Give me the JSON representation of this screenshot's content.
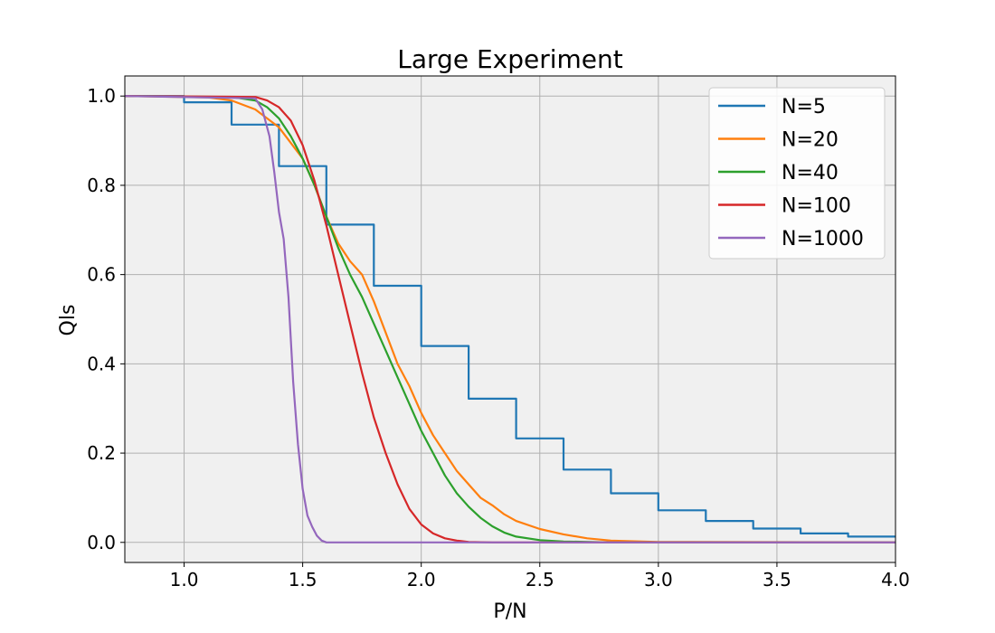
{
  "chart_data": {
    "type": "line",
    "title": "Large Experiment",
    "xlabel": "P/N",
    "ylabel": "Qls",
    "xlim": [
      0.75,
      4.0
    ],
    "ylim": [
      -0.045,
      1.045
    ],
    "grid": true,
    "background": "#f0f0f0",
    "legend_position": "top-right",
    "xticks": [
      1.0,
      1.5,
      2.0,
      2.5,
      3.0,
      3.5,
      4.0
    ],
    "xtick_labels": [
      "1.0",
      "1.5",
      "2.0",
      "2.5",
      "3.0",
      "3.5",
      "4.0"
    ],
    "yticks": [
      0.0,
      0.2,
      0.4,
      0.6,
      0.8,
      1.0
    ],
    "ytick_labels": [
      "0.0",
      "0.2",
      "0.4",
      "0.6",
      "0.8",
      "1.0"
    ],
    "series": [
      {
        "name": "N=5",
        "color": "#1f77b4",
        "points": [
          [
            0.75,
            1.0
          ],
          [
            1.0,
            1.0
          ],
          [
            1.0,
            0.986
          ],
          [
            1.2,
            0.986
          ],
          [
            1.2,
            0.936
          ],
          [
            1.4,
            0.936
          ],
          [
            1.4,
            0.843
          ],
          [
            1.6,
            0.843
          ],
          [
            1.6,
            0.712
          ],
          [
            1.8,
            0.712
          ],
          [
            1.8,
            0.575
          ],
          [
            2.0,
            0.575
          ],
          [
            2.0,
            0.44
          ],
          [
            2.2,
            0.44
          ],
          [
            2.2,
            0.322
          ],
          [
            2.4,
            0.322
          ],
          [
            2.4,
            0.233
          ],
          [
            2.6,
            0.233
          ],
          [
            2.6,
            0.163
          ],
          [
            2.8,
            0.163
          ],
          [
            2.8,
            0.11
          ],
          [
            3.0,
            0.11
          ],
          [
            3.0,
            0.072
          ],
          [
            3.2,
            0.072
          ],
          [
            3.2,
            0.048
          ],
          [
            3.4,
            0.048
          ],
          [
            3.4,
            0.031
          ],
          [
            3.6,
            0.031
          ],
          [
            3.6,
            0.02
          ],
          [
            3.8,
            0.02
          ],
          [
            3.8,
            0.013
          ],
          [
            4.0,
            0.013
          ]
        ]
      },
      {
        "name": "N=20",
        "color": "#ff7f0e",
        "points": [
          [
            0.75,
            1.0
          ],
          [
            1.1,
            0.997
          ],
          [
            1.2,
            0.99
          ],
          [
            1.3,
            0.97
          ],
          [
            1.4,
            0.93
          ],
          [
            1.5,
            0.86
          ],
          [
            1.55,
            0.8
          ],
          [
            1.6,
            0.73
          ],
          [
            1.65,
            0.67
          ],
          [
            1.7,
            0.63
          ],
          [
            1.75,
            0.6
          ],
          [
            1.8,
            0.54
          ],
          [
            1.85,
            0.47
          ],
          [
            1.9,
            0.4
          ],
          [
            1.95,
            0.35
          ],
          [
            2.0,
            0.29
          ],
          [
            2.05,
            0.24
          ],
          [
            2.1,
            0.2
          ],
          [
            2.15,
            0.16
          ],
          [
            2.2,
            0.13
          ],
          [
            2.25,
            0.1
          ],
          [
            2.3,
            0.083
          ],
          [
            2.35,
            0.063
          ],
          [
            2.4,
            0.048
          ],
          [
            2.5,
            0.03
          ],
          [
            2.6,
            0.018
          ],
          [
            2.7,
            0.009
          ],
          [
            2.8,
            0.004
          ],
          [
            3.0,
            0.001
          ],
          [
            4.0,
            0.0
          ]
        ]
      },
      {
        "name": "N=40",
        "color": "#2ca02c",
        "points": [
          [
            0.75,
            1.0
          ],
          [
            1.2,
            0.998
          ],
          [
            1.3,
            0.99
          ],
          [
            1.35,
            0.975
          ],
          [
            1.4,
            0.95
          ],
          [
            1.45,
            0.91
          ],
          [
            1.5,
            0.86
          ],
          [
            1.55,
            0.8
          ],
          [
            1.6,
            0.73
          ],
          [
            1.65,
            0.66
          ],
          [
            1.7,
            0.6
          ],
          [
            1.75,
            0.55
          ],
          [
            1.8,
            0.49
          ],
          [
            1.85,
            0.43
          ],
          [
            1.9,
            0.37
          ],
          [
            1.95,
            0.31
          ],
          [
            2.0,
            0.25
          ],
          [
            2.05,
            0.2
          ],
          [
            2.1,
            0.15
          ],
          [
            2.15,
            0.11
          ],
          [
            2.2,
            0.08
          ],
          [
            2.25,
            0.055
          ],
          [
            2.3,
            0.036
          ],
          [
            2.35,
            0.022
          ],
          [
            2.4,
            0.013
          ],
          [
            2.5,
            0.005
          ],
          [
            2.6,
            0.002
          ],
          [
            2.8,
            0.0
          ],
          [
            4.0,
            0.0
          ]
        ]
      },
      {
        "name": "N=100",
        "color": "#d62728",
        "points": [
          [
            0.75,
            1.0
          ],
          [
            1.3,
            0.998
          ],
          [
            1.35,
            0.99
          ],
          [
            1.4,
            0.975
          ],
          [
            1.45,
            0.945
          ],
          [
            1.5,
            0.89
          ],
          [
            1.55,
            0.81
          ],
          [
            1.6,
            0.71
          ],
          [
            1.65,
            0.6
          ],
          [
            1.7,
            0.49
          ],
          [
            1.75,
            0.38
          ],
          [
            1.8,
            0.28
          ],
          [
            1.85,
            0.2
          ],
          [
            1.9,
            0.13
          ],
          [
            1.95,
            0.075
          ],
          [
            2.0,
            0.04
          ],
          [
            2.05,
            0.02
          ],
          [
            2.1,
            0.009
          ],
          [
            2.15,
            0.004
          ],
          [
            2.2,
            0.001
          ],
          [
            2.3,
            0.0
          ],
          [
            4.0,
            0.0
          ]
        ]
      },
      {
        "name": "N=1000",
        "color": "#9467bd",
        "points": [
          [
            0.75,
            1.0
          ],
          [
            1.3,
            0.995
          ],
          [
            1.33,
            0.97
          ],
          [
            1.36,
            0.91
          ],
          [
            1.38,
            0.83
          ],
          [
            1.4,
            0.74
          ],
          [
            1.42,
            0.68
          ],
          [
            1.44,
            0.55
          ],
          [
            1.46,
            0.36
          ],
          [
            1.48,
            0.22
          ],
          [
            1.5,
            0.12
          ],
          [
            1.52,
            0.06
          ],
          [
            1.54,
            0.035
          ],
          [
            1.56,
            0.015
          ],
          [
            1.58,
            0.004
          ],
          [
            1.6,
            0.0
          ],
          [
            4.0,
            0.0
          ]
        ]
      }
    ]
  }
}
